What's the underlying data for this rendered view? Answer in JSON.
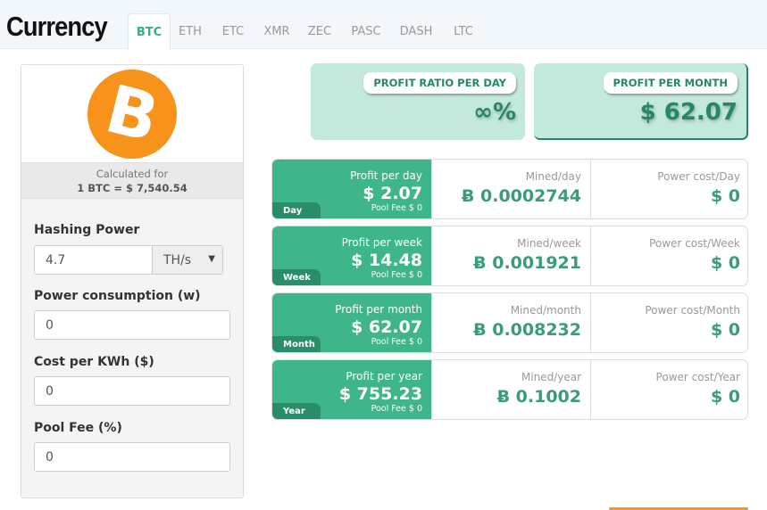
{
  "header": {
    "title": "Currency",
    "tabs": [
      "BTC",
      "ETH",
      "ETC",
      "XMR",
      "ZEC",
      "PASC",
      "DASH",
      "LTC"
    ],
    "active_tab": "BTC"
  },
  "sidebar": {
    "coin_icon": "bitcoin-logo",
    "calculated_for": "Calculated for",
    "rate": "1 BTC = $ 7,540.54",
    "hashing_power_label": "Hashing Power",
    "hashing_power": "4.7",
    "hash_unit": "TH/s",
    "power_label": "Power consumption (w)",
    "power": "0",
    "cost_label": "Cost per KWh ($)",
    "cost": "0",
    "pool_fee_label": "Pool Fee (%)",
    "pool_fee": "0"
  },
  "summary": {
    "ratio_label": "PROFIT RATIO PER DAY",
    "ratio": "∞%",
    "month_label": "PROFIT PER MONTH",
    "month": "$ 62.07"
  },
  "rows": [
    {
      "badge": "Day",
      "profit_label": "Profit per day",
      "profit": "$ 2.07",
      "fee": "Pool Fee $ 0",
      "mined_label": "Mined/day",
      "mined": "Ƀ 0.0002744",
      "power_label": "Power cost/Day",
      "power": "$ 0"
    },
    {
      "badge": "Week",
      "profit_label": "Profit per week",
      "profit": "$ 14.48",
      "fee": "Pool Fee $ 0",
      "mined_label": "Mined/week",
      "mined": "Ƀ 0.001921",
      "power_label": "Power cost/Week",
      "power": "$ 0"
    },
    {
      "badge": "Month",
      "profit_label": "Profit per month",
      "profit": "$ 62.07",
      "fee": "Pool Fee $ 0",
      "mined_label": "Mined/month",
      "mined": "Ƀ 0.008232",
      "power_label": "Power cost/Month",
      "power": "$ 0"
    },
    {
      "badge": "Year",
      "profit_label": "Profit per year",
      "profit": "$ 755.23",
      "fee": "Pool Fee $ 0",
      "mined_label": "Mined/year",
      "mined": "Ƀ 0.1002",
      "power_label": "Power cost/Year",
      "power": "$ 0"
    }
  ],
  "colors": {
    "accent": "#3fb58a",
    "bitcoin": "#f7931a",
    "card": "#c3e8dc"
  }
}
